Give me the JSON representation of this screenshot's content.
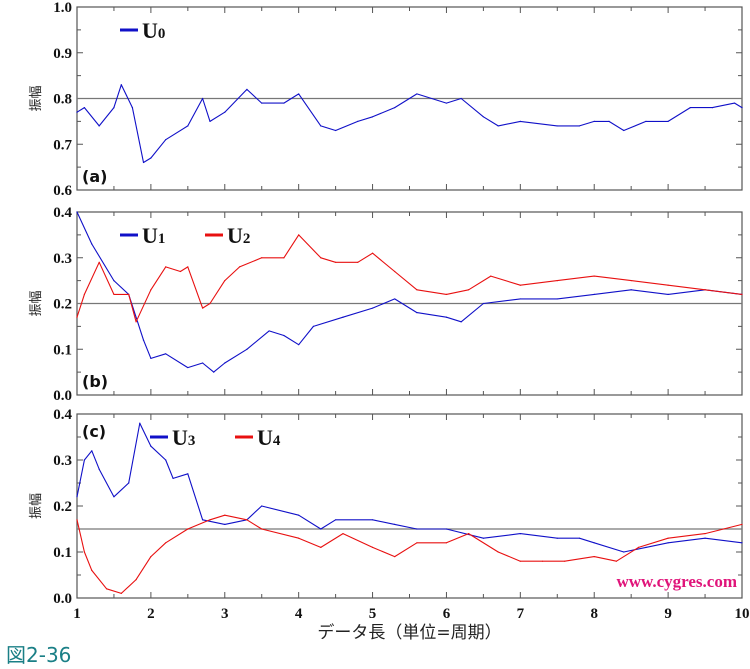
{
  "figure_label": "図2-36",
  "watermark": "www.cygres.com",
  "colors": {
    "blue": "#1010c8",
    "red": "#e81010",
    "reference": "#777777",
    "watermark": "#e0147a",
    "figure_label": "#1a7f86"
  },
  "chart_data": [
    {
      "type": "line",
      "panel_label": "(a)",
      "ylabel": "振幅",
      "xlabel": "データ長（単位=周期）",
      "xlim": [
        1,
        10
      ],
      "ylim": [
        0.6,
        1.0
      ],
      "yticks": [
        "0.6",
        "0.7",
        "0.8",
        "0.9",
        "1.0"
      ],
      "reference_line": 0.8,
      "legend_placement": "top-left",
      "series": [
        {
          "name": "U",
          "sub": "0",
          "color": "#1010c8",
          "x": [
            1.0,
            1.1,
            1.3,
            1.5,
            1.6,
            1.75,
            1.9,
            2.0,
            2.2,
            2.5,
            2.7,
            2.8,
            3.0,
            3.3,
            3.5,
            3.8,
            4.0,
            4.3,
            4.5,
            4.8,
            5.0,
            5.3,
            5.6,
            6.0,
            6.2,
            6.5,
            6.7,
            7.0,
            7.5,
            7.8,
            8.0,
            8.2,
            8.4,
            8.7,
            9.0,
            9.3,
            9.6,
            9.9,
            10.0
          ],
          "y": [
            0.77,
            0.78,
            0.74,
            0.78,
            0.83,
            0.78,
            0.66,
            0.67,
            0.71,
            0.74,
            0.8,
            0.75,
            0.77,
            0.82,
            0.79,
            0.79,
            0.81,
            0.74,
            0.73,
            0.75,
            0.76,
            0.78,
            0.81,
            0.79,
            0.8,
            0.76,
            0.74,
            0.75,
            0.74,
            0.74,
            0.75,
            0.75,
            0.73,
            0.75,
            0.75,
            0.78,
            0.78,
            0.79,
            0.78
          ]
        }
      ]
    },
    {
      "type": "line",
      "panel_label": "(b)",
      "ylabel": "振幅",
      "xlim": [
        1,
        10
      ],
      "ylim": [
        0.0,
        0.4
      ],
      "yticks": [
        "0.0",
        "0.1",
        "0.2",
        "0.3",
        "0.4"
      ],
      "reference_line": 0.2,
      "legend_placement": "top-left",
      "series": [
        {
          "name": "U",
          "sub": "1",
          "color": "#1010c8",
          "x": [
            1.0,
            1.2,
            1.5,
            1.7,
            1.9,
            2.0,
            2.2,
            2.5,
            2.7,
            2.85,
            3.0,
            3.3,
            3.6,
            3.8,
            4.0,
            4.2,
            4.6,
            5.0,
            5.3,
            5.6,
            6.0,
            6.2,
            6.5,
            7.0,
            7.5,
            8.0,
            8.5,
            9.0,
            9.5,
            10.0
          ],
          "y": [
            0.4,
            0.33,
            0.25,
            0.22,
            0.12,
            0.08,
            0.09,
            0.06,
            0.07,
            0.05,
            0.07,
            0.1,
            0.14,
            0.13,
            0.11,
            0.15,
            0.17,
            0.19,
            0.21,
            0.18,
            0.17,
            0.16,
            0.2,
            0.21,
            0.21,
            0.22,
            0.23,
            0.22,
            0.23,
            0.22
          ]
        },
        {
          "name": "U",
          "sub": "2",
          "color": "#e81010",
          "x": [
            1.0,
            1.1,
            1.3,
            1.5,
            1.7,
            1.8,
            2.0,
            2.2,
            2.4,
            2.5,
            2.7,
            2.8,
            3.0,
            3.2,
            3.5,
            3.8,
            4.0,
            4.3,
            4.5,
            4.8,
            5.0,
            5.3,
            5.6,
            6.0,
            6.3,
            6.6,
            7.0,
            7.5,
            8.0,
            8.5,
            9.0,
            9.5,
            10.0
          ],
          "y": [
            0.17,
            0.22,
            0.29,
            0.22,
            0.22,
            0.16,
            0.23,
            0.28,
            0.27,
            0.28,
            0.19,
            0.2,
            0.25,
            0.28,
            0.3,
            0.3,
            0.35,
            0.3,
            0.29,
            0.29,
            0.31,
            0.27,
            0.23,
            0.22,
            0.23,
            0.26,
            0.24,
            0.25,
            0.26,
            0.25,
            0.24,
            0.23,
            0.22
          ]
        }
      ]
    },
    {
      "type": "line",
      "panel_label": "(c)",
      "ylabel": "振幅",
      "xlim": [
        1,
        10
      ],
      "ylim": [
        0.0,
        0.4
      ],
      "yticks": [
        "0.0",
        "0.1",
        "0.2",
        "0.3",
        "0.4"
      ],
      "xticks": [
        "1",
        "2",
        "3",
        "4",
        "5",
        "6",
        "7",
        "8",
        "9",
        "10"
      ],
      "reference_line": 0.15,
      "legend_placement": "top-left",
      "series": [
        {
          "name": "U",
          "sub": "3",
          "color": "#1010c8",
          "x": [
            1.0,
            1.1,
            1.2,
            1.3,
            1.5,
            1.7,
            1.85,
            2.0,
            2.2,
            2.3,
            2.5,
            2.7,
            3.0,
            3.3,
            3.5,
            4.0,
            4.3,
            4.5,
            5.0,
            5.3,
            5.6,
            6.0,
            6.5,
            7.0,
            7.5,
            7.8,
            8.0,
            8.4,
            8.7,
            9.0,
            9.5,
            10.0
          ],
          "y": [
            0.22,
            0.3,
            0.32,
            0.28,
            0.22,
            0.25,
            0.38,
            0.33,
            0.3,
            0.26,
            0.27,
            0.17,
            0.16,
            0.17,
            0.2,
            0.18,
            0.15,
            0.17,
            0.17,
            0.16,
            0.15,
            0.15,
            0.13,
            0.14,
            0.13,
            0.13,
            0.12,
            0.1,
            0.11,
            0.12,
            0.13,
            0.12
          ]
        },
        {
          "name": "U",
          "sub": "4",
          "color": "#e81010",
          "x": [
            1.0,
            1.1,
            1.2,
            1.4,
            1.6,
            1.8,
            2.0,
            2.2,
            2.5,
            2.8,
            3.0,
            3.3,
            3.5,
            4.0,
            4.3,
            4.6,
            5.0,
            5.3,
            5.6,
            6.0,
            6.3,
            6.7,
            7.0,
            7.3,
            7.6,
            8.0,
            8.3,
            8.6,
            9.0,
            9.5,
            10.0
          ],
          "y": [
            0.17,
            0.1,
            0.06,
            0.02,
            0.01,
            0.04,
            0.09,
            0.12,
            0.15,
            0.17,
            0.18,
            0.17,
            0.15,
            0.13,
            0.11,
            0.14,
            0.11,
            0.09,
            0.12,
            0.12,
            0.14,
            0.1,
            0.08,
            0.08,
            0.08,
            0.09,
            0.08,
            0.11,
            0.13,
            0.14,
            0.16
          ]
        }
      ]
    }
  ]
}
